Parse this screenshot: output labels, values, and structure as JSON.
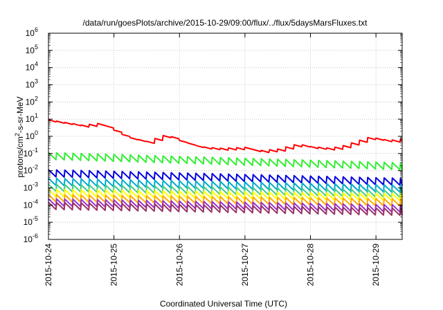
{
  "chart_data": {
    "type": "line",
    "title": "/data/run/goesPlots/archive/2015-10-29/09:00/flux/../flux/5daysMarsFluxes.txt",
    "xlabel": "Coordinated Universal Time (UTC)",
    "ylabel": {
      "pre": "protons/cm",
      "sup": "2",
      "post": "-s-sr-MeV"
    },
    "yscale": "log",
    "ylim_exp": [
      -6,
      6
    ],
    "y_ticks": [
      {
        "base": "10",
        "exp": "-6"
      },
      {
        "base": "10",
        "exp": "-5"
      },
      {
        "base": "10",
        "exp": "-4"
      },
      {
        "base": "10",
        "exp": "-3"
      },
      {
        "base": "10",
        "exp": "-2"
      },
      {
        "base": "10",
        "exp": "-1"
      },
      {
        "base": "10",
        "exp": "0"
      },
      {
        "base": "10",
        "exp": "1"
      },
      {
        "base": "10",
        "exp": "2"
      },
      {
        "base": "10",
        "exp": "3"
      },
      {
        "base": "10",
        "exp": "4"
      },
      {
        "base": "10",
        "exp": "5"
      },
      {
        "base": "10",
        "exp": "6"
      }
    ],
    "x_ticks": [
      "2015-10-24",
      "2015-10-25",
      "2015-10-26",
      "2015-10-27",
      "2015-10-28",
      "2015-10-29"
    ],
    "xlim_days": [
      0,
      5.4
    ],
    "grid": true,
    "series": [
      {
        "color": "#ff0000",
        "x": [
          0,
          0.5,
          0.8,
          1.0,
          1.2,
          1.5,
          1.8,
          2.0,
          2.3,
          2.6,
          3.0,
          3.2,
          3.5,
          3.8,
          4.0,
          4.3,
          4.5,
          4.9,
          5.2,
          5.4
        ],
        "log10_y": [
          0.9,
          0.6,
          0.7,
          0.3,
          -0.1,
          -0.35,
          0.05,
          -0.3,
          -0.65,
          -0.75,
          -0.7,
          -0.9,
          -0.8,
          -0.5,
          -0.65,
          -0.75,
          -0.6,
          -0.1,
          -0.3,
          -0.2
        ]
      },
      {
        "color": "#33ee33",
        "x": [
          0,
          5.4
        ],
        "log10_y": [
          -1.15,
          -1.75
        ]
      },
      {
        "color": "#0000dd",
        "x": [
          0,
          5.4
        ],
        "log10_y": [
          -2.15,
          -2.65
        ]
      },
      {
        "color": "#00aacc",
        "x": [
          0,
          5.4
        ],
        "log10_y": [
          -2.65,
          -3.05
        ]
      },
      {
        "color": "#44cc88",
        "x": [
          0,
          5.4
        ],
        "log10_y": [
          -3.0,
          -3.35
        ]
      },
      {
        "color": "#ffff00",
        "x": [
          0,
          5.4
        ],
        "log10_y": [
          -3.3,
          -3.55
        ]
      },
      {
        "color": "#ffaa00",
        "x": [
          0,
          5.4
        ],
        "log10_y": [
          -3.6,
          -3.85
        ]
      },
      {
        "color": "#9933cc",
        "x": [
          0,
          5.4
        ],
        "log10_y": [
          -3.85,
          -4.2
        ]
      },
      {
        "color": "#993366",
        "x": [
          0,
          5.4
        ],
        "log10_y": [
          -4.05,
          -4.4
        ]
      }
    ]
  }
}
